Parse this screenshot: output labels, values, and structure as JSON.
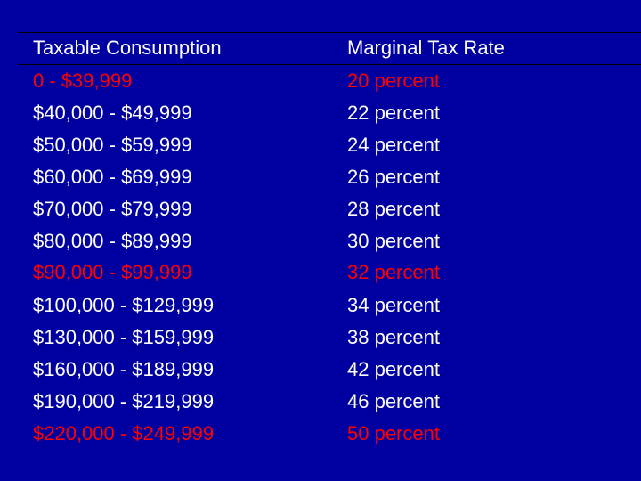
{
  "colors": {
    "background": "#0000a0",
    "text": "#ffffff",
    "highlight": "#ff0000"
  },
  "table": {
    "headers": {
      "consumption": "Taxable Consumption",
      "rate": "Marginal Tax Rate"
    },
    "rows": [
      {
        "consumption": "0 - $39,999",
        "rate": "20 percent",
        "highlight": true
      },
      {
        "consumption": "$40,000 - $49,999",
        "rate": "22 percent",
        "highlight": false
      },
      {
        "consumption": "$50,000 - $59,999",
        "rate": "24 percent",
        "highlight": false
      },
      {
        "consumption": "$60,000 - $69,999",
        "rate": "26 percent",
        "highlight": false
      },
      {
        "consumption": "$70,000 - $79,999",
        "rate": "28 percent",
        "highlight": false
      },
      {
        "consumption": "$80,000 - $89,999",
        "rate": "30 percent",
        "highlight": false
      },
      {
        "consumption": "$90,000 - $99,999",
        "rate": "32 percent",
        "highlight": true
      },
      {
        "consumption": "$100,000 - $129,999",
        "rate": "34 percent",
        "highlight": false
      },
      {
        "consumption": "$130,000 - $159,999",
        "rate": "38 percent",
        "highlight": false
      },
      {
        "consumption": "$160,000 - $189,999",
        "rate": "42 percent",
        "highlight": false
      },
      {
        "consumption": "$190,000 - $219,999",
        "rate": "46 percent",
        "highlight": false
      },
      {
        "consumption": "$220,000 - $249,999",
        "rate": "50 percent",
        "highlight": true
      }
    ]
  }
}
